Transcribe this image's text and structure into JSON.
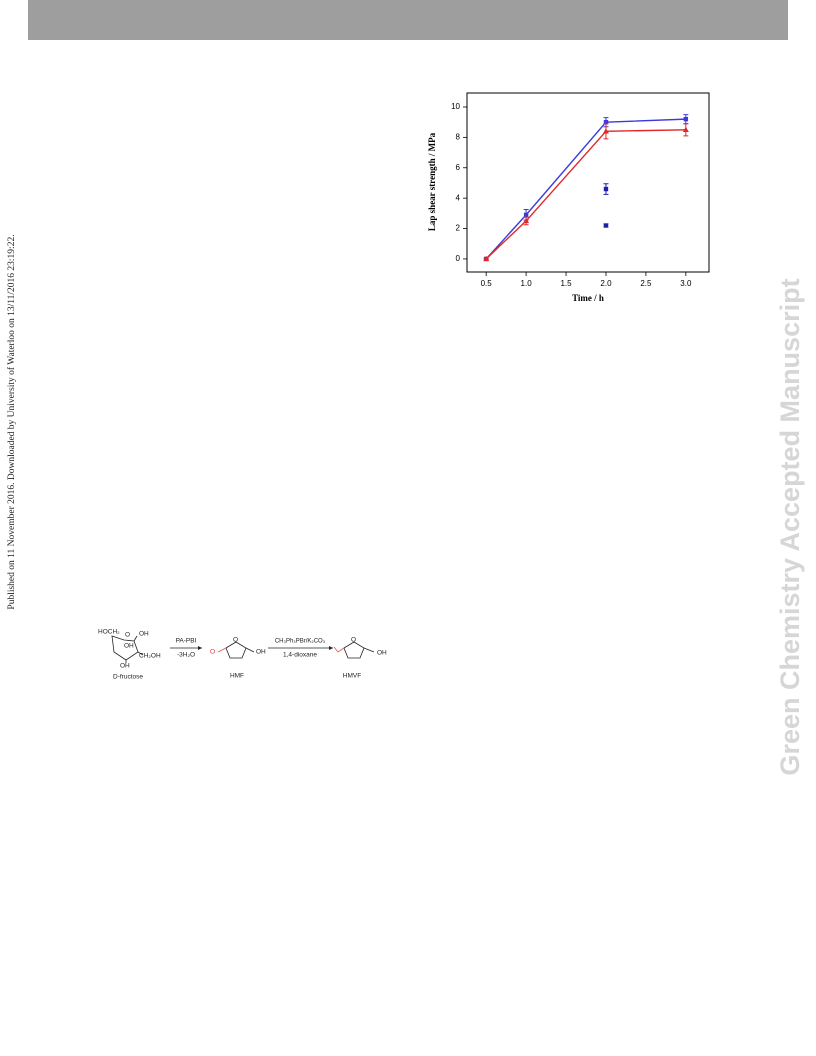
{
  "sidebar_text": "Published on 11 November 2016. Downloaded by University of Waterloo on 13/11/2016 23:19:22.",
  "watermark": "Green Chemistry Accepted Manuscript",
  "chart_data": {
    "type": "line",
    "x_label": "Time / h",
    "y_label": "Lap  shear  strength / MPa",
    "xlim": [
      0.26,
      3.29
    ],
    "ylim": [
      -0.86,
      10.92
    ],
    "xticks": [
      0.5,
      {
        "value": 1,
        "label": "1.0"
      },
      1.5,
      {
        "value": 2,
        "label": "2.0"
      },
      2.5,
      {
        "value": 3,
        "label": "3.0"
      }
    ],
    "yticks": [
      0,
      2,
      4,
      6,
      8,
      10
    ],
    "series": [
      {
        "color": "#3b3bdc",
        "marker": "square",
        "line": true,
        "x": [
          0.5,
          1,
          2,
          3
        ],
        "values": [
          0,
          2.9,
          9.0,
          9.2
        ],
        "errors": [
          0,
          0.35,
          0.3,
          0.3
        ]
      },
      {
        "color": "#e02828",
        "marker": "triangle",
        "line": true,
        "x": [
          0.5,
          1,
          2,
          3
        ],
        "values": [
          0,
          2.5,
          8.4,
          8.5
        ],
        "errors": [
          0,
          0.25,
          0.5,
          0.4
        ]
      },
      {
        "color": "#1f1fa8",
        "marker": "square",
        "line": false,
        "x": [
          2,
          2
        ],
        "values": [
          4.6,
          2.2
        ],
        "errors": [
          0.35,
          0.1
        ]
      }
    ]
  },
  "scheme": {
    "fructose": {
      "labels": [
        "HOCH₂",
        "O",
        "OH",
        "OH",
        "CH₂OH",
        "OH"
      ],
      "name": "D-fructose"
    },
    "step1": {
      "reagent": "PA-PBI",
      "condition": "-3H₂O"
    },
    "hmf": {
      "labels": [
        "O",
        "O",
        "OH"
      ],
      "name": "HMF"
    },
    "step2": {
      "reagent": "CH₃Ph₃PBr/K₂CO₃",
      "condition": "1,4-dioxane"
    },
    "hmvf": {
      "labels": [
        "O",
        "OH"
      ],
      "name": "HMVF"
    }
  }
}
